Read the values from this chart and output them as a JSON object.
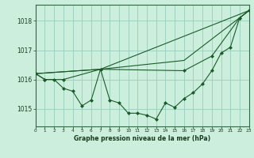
{
  "title": "Graphe pression niveau de la mer (hPa)",
  "bg_color": "#cceedd",
  "grid_color": "#99ccbb",
  "line_color": "#1a5c28",
  "marker_color": "#1a5c28",
  "xlim": [
    0,
    23
  ],
  "ylim": [
    1014.4,
    1018.55
  ],
  "yticks": [
    1015,
    1016,
    1017,
    1018
  ],
  "xticks": [
    0,
    1,
    2,
    3,
    4,
    5,
    6,
    7,
    8,
    9,
    10,
    11,
    12,
    13,
    14,
    15,
    16,
    17,
    18,
    19,
    20,
    21,
    22,
    23
  ],
  "series1": [
    1016.2,
    1016.0,
    1016.0,
    1015.7,
    1015.6,
    1015.1,
    1015.3,
    1016.35,
    1015.3,
    1015.2,
    1014.85,
    1014.85,
    1014.78,
    1014.65,
    1015.2,
    1015.05,
    1015.35,
    1015.55,
    1015.85,
    1016.3,
    1016.9,
    1017.1,
    1018.1,
    1018.35
  ],
  "series2_x": [
    0,
    1,
    3,
    7,
    16,
    19,
    22,
    23
  ],
  "series2_y": [
    1016.2,
    1016.0,
    1016.0,
    1016.35,
    1016.3,
    1016.8,
    1018.1,
    1018.35
  ],
  "series3_x": [
    0,
    7,
    23
  ],
  "series3_y": [
    1016.2,
    1016.35,
    1018.35
  ],
  "series4_x": [
    0,
    7,
    16,
    23
  ],
  "series4_y": [
    1016.2,
    1016.35,
    1016.65,
    1018.35
  ]
}
